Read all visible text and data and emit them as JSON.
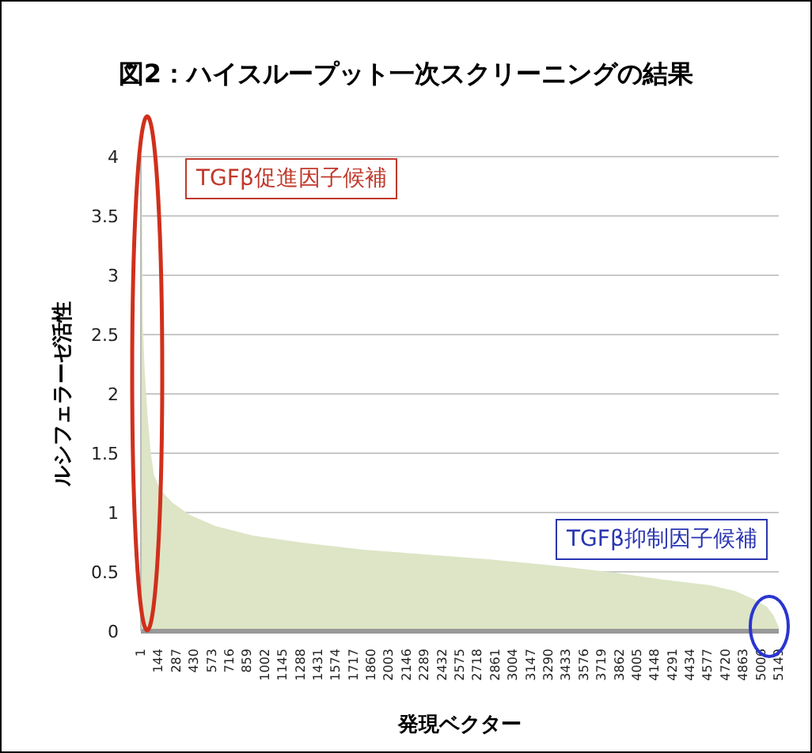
{
  "chart_data": {
    "type": "area",
    "title": "図2：ハイスループット一次スクリーニングの結果",
    "xlabel": "発現ベクター",
    "ylabel": "ルシフェラーゼ活性",
    "x": [
      1,
      10,
      25,
      50,
      75,
      100,
      150,
      250,
      400,
      600,
      900,
      1300,
      1800,
      2300,
      2800,
      3300,
      3800,
      4200,
      4600,
      4800,
      4950,
      5050,
      5100,
      5149
    ],
    "series": [
      {
        "color": "#dde5c6",
        "values": [
          4.0,
          2.6,
          2.2,
          1.8,
          1.5,
          1.32,
          1.19,
          1.08,
          0.97,
          0.88,
          0.8,
          0.74,
          0.68,
          0.64,
          0.6,
          0.55,
          0.49,
          0.43,
          0.38,
          0.33,
          0.26,
          0.2,
          0.13,
          0.02
        ]
      }
    ],
    "xlim": [
      1,
      5149
    ],
    "xticks": [
      1,
      144,
      287,
      430,
      573,
      716,
      859,
      1002,
      1145,
      1288,
      1431,
      1574,
      1717,
      1860,
      2003,
      2146,
      2289,
      2432,
      2575,
      2718,
      2861,
      3004,
      3147,
      3290,
      3433,
      3576,
      3719,
      3862,
      4005,
      4148,
      4291,
      4434,
      4577,
      4720,
      4863,
      5006,
      5149
    ],
    "ylim": [
      0,
      4
    ],
    "yticks": [
      0,
      0.5,
      1,
      1.5,
      2,
      2.5,
      3,
      3.5,
      4
    ],
    "grid": "y",
    "legend": false,
    "annotations": [
      "TGFβ促進因子候補",
      "TGFβ抑制因子候補"
    ]
  }
}
